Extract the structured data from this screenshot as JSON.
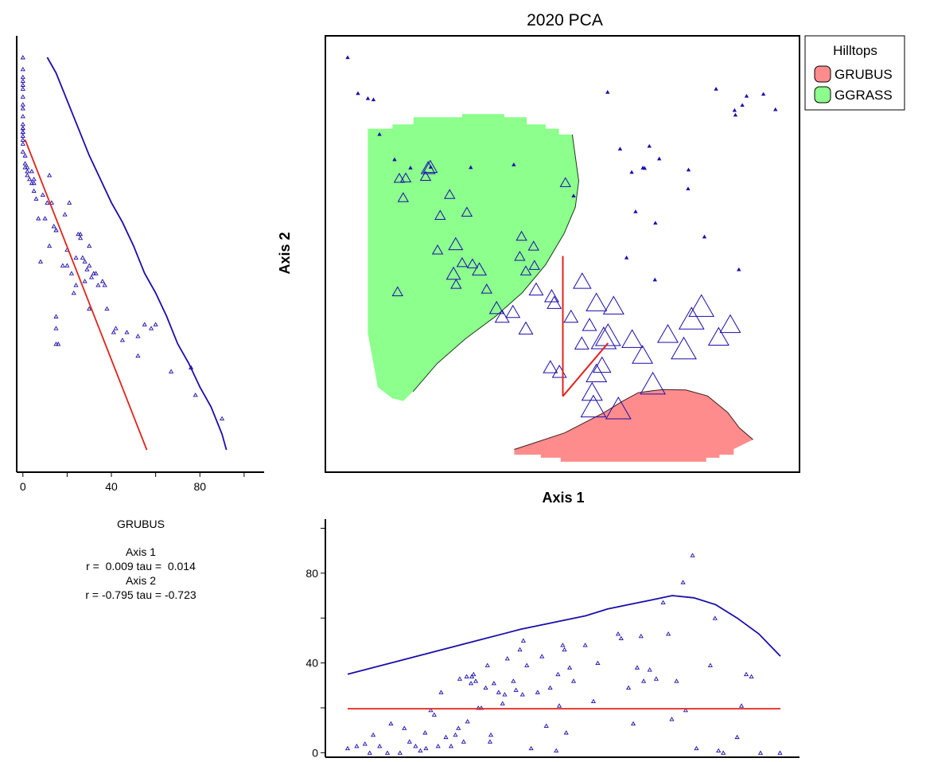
{
  "chart_data": [
    {
      "type": "scatter",
      "title": "2020 PCA",
      "xlabel": "Axis 1",
      "ylabel": "Axis 2",
      "grid": false,
      "legend": {
        "title": "Hilltops",
        "placement": "top-right",
        "entries": [
          {
            "name": "GRUBUS",
            "color": "#ff8c8c"
          },
          {
            "name": "GGRASS",
            "color": "#8cff8c"
          }
        ]
      },
      "colors": {
        "points": "#1a0dab",
        "vector": "#e0241b",
        "grubus_fill": "#ff8c8c",
        "ggrass_fill": "#8cff8c"
      },
      "x": [
        0,
        2.4,
        4.7,
        6.0,
        7.4,
        10.9,
        14.6,
        19.3,
        28.6,
        38.6,
        52.5,
        79.1,
        79.2,
        66.0,
        70.1,
        69.0,
        72.4,
        68.6,
        63.3,
        60.4,
        66.9,
        71.4,
        71.5,
        64.8,
        82.9,
        90.9,
        99.4,
        96.6,
        92.7,
        91.7,
        89.9,
        90.1,
        85.6,
        11.6,
        20.9,
        26.6,
        25.2,
        29.0,
        32.3,
        41.4,
        40.4,
        40.0,
        43.4,
        50.6,
        56.2,
        54.4,
        49.2,
        51.9,
        48.0,
        47.4,
        47.1,
        41.4,
        43.8,
        43.2,
        38.4,
        35.9,
        34.6,
        30.6,
        24.6,
        27.7,
        25.1,
        21.5,
        23.7,
        18.1,
        12.0,
        13.5,
        12.9,
        18.7,
        19.2,
        54.5,
        57.8,
        60.5,
        61.8,
        59.5,
        57.8,
        56.8,
        57.1,
        62.9,
        70.9,
        59.1,
        66.1,
        68.5,
        74.4,
        78.1,
        86.2,
        79.9,
        88.9,
        82.2
      ],
      "y": [
        100,
        90.9,
        89.6,
        89.3,
        80.5,
        74.1,
        72.0,
        72.2,
        72.1,
        72.8,
        64.9,
        66.7,
        71.5,
        70.9,
        77.5,
        71.9,
        74.3,
        72.0,
        76.8,
        91.2,
        60.9,
        43.6,
        58.0,
        49.2,
        54.5,
        46.2,
        86.8,
        90.7,
        90.2,
        87.9,
        86.6,
        85.4,
        92.0,
        40.6,
        51.2,
        48.0,
        42.5,
        47.7,
        41.3,
        45.9,
        54.7,
        49.6,
        47.3,
        68.3,
        32.2,
        27.5,
        20.3,
        34.3,
        37.8,
        39.5,
        21.5,
        31.3,
        41.2,
        52.2,
        35.5,
        34.3,
        36.5,
        46.3,
        45.2,
        60.8,
        52.7,
        60.0,
        65.3,
        69.9,
        69.4,
        69.5,
        64.5,
        72.0,
        72.3,
        43.3,
        37.9,
        29.6,
        37.1,
        28.8,
        19.9,
        15.2,
        11.5,
        11.0,
        17.3,
        22.0,
        28.6,
        24.6,
        29.9,
        26.2,
        29.2,
        33.8,
        32.4,
        37.0
      ],
      "marker_size": [
        1,
        1,
        1,
        1,
        1,
        1,
        1,
        1,
        1,
        1,
        1,
        1,
        1,
        1,
        1,
        1,
        1,
        1,
        1,
        1,
        1,
        1,
        1,
        1,
        1,
        1,
        1,
        1,
        1,
        1,
        1,
        1,
        1,
        2,
        2,
        2,
        2,
        2,
        2,
        2,
        2,
        2,
        2,
        2,
        3,
        3,
        3,
        3,
        3,
        3,
        3,
        3,
        3,
        2,
        3,
        3,
        3,
        3,
        3,
        2,
        3,
        2,
        2,
        2,
        2,
        2,
        2,
        3,
        3,
        4,
        5,
        6,
        5,
        6,
        5,
        5,
        6,
        6,
        6,
        4,
        5,
        5,
        5,
        6,
        5,
        6,
        5,
        6
      ],
      "xlim": [
        0,
        100
      ],
      "ylim": [
        0,
        100
      ],
      "vectors": [
        {
          "x": [
            50.0,
            50.0
          ],
          "y": [
            14.0,
            49.6
          ]
        },
        {
          "x": [
            50.0,
            60.5
          ],
          "y": [
            14.0,
            27.5
          ]
        }
      ],
      "hulls": [
        {
          "name": "GGRASS",
          "color": "#8cff8c",
          "x": [
            4.7,
            4.7,
            10.4,
            10.4,
            15.3,
            15.3,
            26.6,
            26.6,
            36.4,
            36.4,
            41.6,
            41.6,
            46.0,
            46.0,
            49.1,
            49.1,
            52.2,
            53.7,
            52.9,
            50.3,
            46.0,
            40.6,
            34.4,
            27.4,
            20.8,
            15.2,
            12.9,
            10.4,
            7.0,
            6.3,
            4.7
          ],
          "y": [
            76.9,
            81.9,
            81.9,
            83.0,
            83.0,
            84.8,
            84.8,
            85.6,
            85.6,
            84.8,
            84.8,
            83.0,
            83.0,
            81.9,
            81.9,
            80.4,
            80.4,
            68.6,
            62.0,
            55.3,
            47.4,
            40.3,
            34.3,
            28.6,
            22.3,
            15.2,
            12.8,
            13.5,
            16.3,
            20.5,
            30.0
          ]
        },
        {
          "name": "GRUBUS",
          "color": "#ff8c8c",
          "x": [
            38.7,
            50.4,
            59.3,
            63.8,
            67.5,
            70.8,
            73.3,
            78.6,
            83.6,
            88.3,
            91.0,
            94.2,
            89.7,
            89.7,
            86.4,
            86.4,
            83.3,
            83.3,
            49.5,
            49.5,
            44.9,
            44.9,
            38.7
          ],
          "y": [
            0.5,
            4.7,
            9.7,
            12.7,
            14.9,
            15.4,
            15.7,
            15.6,
            14.1,
            9.9,
            6.0,
            3.0,
            0.6,
            -0.8,
            -0.8,
            -1.6,
            -1.6,
            -2.6,
            -2.6,
            -1.6,
            -1.6,
            -0.8,
            -0.8
          ]
        }
      ]
    },
    {
      "type": "scatter",
      "title": "",
      "xlabel": "",
      "ylabel": "",
      "grid": false,
      "xticks": [
        0,
        40,
        80
      ],
      "xlim": [
        -1,
        104
      ],
      "ylim": [
        0,
        100
      ],
      "x": [
        0,
        0,
        0,
        0,
        0,
        0,
        0,
        0,
        0,
        0,
        0,
        0,
        0,
        0,
        0,
        0,
        0,
        0,
        0,
        1,
        1,
        1,
        2,
        2,
        2,
        3,
        4,
        4,
        5,
        5,
        5,
        6,
        7,
        8,
        9,
        10,
        11,
        12,
        12,
        13,
        14,
        15,
        15,
        15,
        15,
        15,
        16,
        18,
        19,
        20,
        20,
        21,
        22,
        23,
        24,
        24,
        25,
        26,
        26,
        27,
        28,
        28,
        29,
        30,
        30,
        30,
        31,
        32,
        33,
        34,
        36,
        37,
        38,
        41,
        42,
        45,
        47,
        52,
        52,
        55,
        58,
        60,
        67,
        76,
        78,
        90
      ],
      "y": [
        100,
        97,
        95,
        94,
        93,
        92,
        90,
        88,
        87,
        85,
        83,
        82,
        82,
        81,
        81,
        80,
        79,
        78,
        76,
        75,
        73,
        72,
        72,
        71,
        70,
        69,
        68,
        71,
        69,
        66,
        68,
        64,
        59,
        48,
        65,
        59,
        63,
        70,
        52,
        63,
        57,
        56,
        56,
        34,
        31,
        27,
        27,
        47,
        60,
        51,
        47,
        63,
        45,
        40,
        42,
        49,
        55,
        54,
        55,
        49,
        48,
        43,
        46,
        52,
        47,
        36,
        44,
        45,
        45,
        42,
        43,
        42,
        36,
        30,
        31,
        28,
        30,
        24,
        29,
        32,
        31,
        32,
        20,
        21,
        14,
        8
      ],
      "curves": [
        {
          "name": "",
          "color": "#1a0dab",
          "x": [
            11,
            15,
            20,
            25,
            30,
            35,
            40,
            45,
            50,
            55,
            60,
            65,
            70,
            75,
            80,
            85,
            90,
            92
          ],
          "y": [
            100,
            96,
            89,
            82,
            75,
            69,
            63,
            58,
            52,
            45,
            40,
            34,
            27,
            22,
            16,
            11,
            4,
            0
          ]
        },
        {
          "name": "",
          "color": "#e0241b",
          "x": [
            1,
            56
          ],
          "y": [
            79,
            0
          ]
        }
      ],
      "stats_text": {
        "title": "GRUBUS",
        "axis1": "Axis 1",
        "axis1_stats": "r =  0.009 tau =  0.014",
        "axis2": "Axis 2",
        "axis2_stats": "r = -0.795 tau = -0.723"
      }
    },
    {
      "type": "scatter",
      "title": "",
      "xlabel": "",
      "ylabel": "",
      "grid": false,
      "yticks": [
        0,
        40,
        80
      ],
      "xlim": [
        0,
        100
      ],
      "ylim": [
        -2,
        103
      ],
      "x": [
        0.0,
        2.1,
        4.0,
        5.1,
        5.9,
        7.4,
        9.2,
        10.0,
        12.1,
        13.1,
        14.3,
        15.7,
        16.8,
        17.9,
        18.1,
        19.2,
        20.0,
        20.9,
        21.6,
        22.7,
        23.9,
        24.9,
        25.6,
        25.9,
        26.8,
        27.5,
        27.7,
        28.5,
        28.7,
        29.1,
        29.6,
        30.2,
        30.9,
        31.9,
        32.3,
        32.9,
        33.1,
        33.8,
        34.9,
        35.8,
        36.3,
        36.9,
        38.3,
        38.9,
        39.8,
        40.4,
        40.6,
        41.4,
        42.4,
        43.9,
        44.9,
        45.9,
        46.8,
        48.2,
        48.6,
        48.9,
        49.7,
        50.1,
        50.5,
        51.3,
        52.2,
        54.9,
        56.8,
        57.8,
        62.5,
        63.2,
        64.9,
        66.0,
        66.9,
        67.8,
        68.4,
        69.8,
        71.3,
        72.9,
        74.1,
        74.9,
        76.0,
        77.5,
        78.1,
        79.7,
        80.6,
        83.8,
        84.9,
        85.7,
        86.8,
        90.0,
        91.0,
        92.1,
        93.3,
        95.4,
        99.9
      ],
      "y": [
        2,
        3,
        4,
        0,
        8,
        3,
        0,
        13,
        0,
        11,
        5,
        3,
        1,
        9,
        2,
        19,
        17,
        3,
        27,
        7,
        3,
        8,
        11,
        33,
        5,
        34,
        14,
        31,
        34,
        35,
        32,
        20,
        20,
        29,
        39,
        5,
        8,
        31,
        27,
        22,
        26,
        42,
        32,
        28,
        46,
        26,
        50,
        39,
        2,
        27,
        43,
        12,
        29,
        1,
        35,
        21,
        48,
        46,
        9,
        38,
        32,
        48,
        23,
        40,
        53,
        51,
        29,
        13,
        38,
        52,
        32,
        37,
        33,
        67,
        53,
        15,
        32,
        76,
        19,
        88,
        2,
        39,
        60,
        1,
        0,
        7,
        21,
        35,
        34,
        0,
        0
      ],
      "curves": [
        {
          "name": "",
          "color": "#1a0dab",
          "x": [
            0,
            10,
            20,
            30,
            40,
            50,
            55,
            60,
            65,
            70,
            75,
            80,
            85,
            90,
            95,
            100
          ],
          "y": [
            35,
            40,
            45,
            50,
            55,
            59,
            61,
            64,
            66,
            68,
            70,
            69,
            66,
            60,
            53,
            43
          ]
        },
        {
          "name": "",
          "color": "#e0241b",
          "x": [
            0,
            100
          ],
          "y": [
            19.6,
            19.6
          ]
        }
      ]
    }
  ]
}
